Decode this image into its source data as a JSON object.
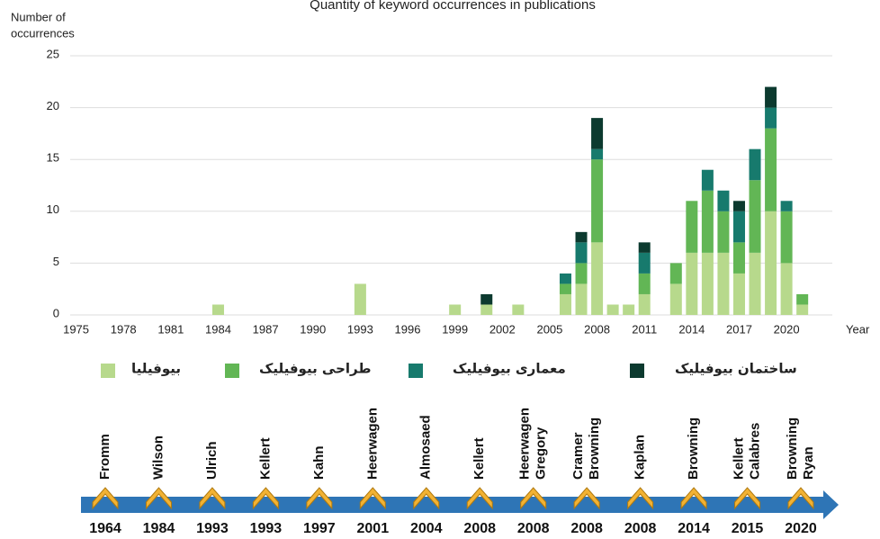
{
  "chart_data": {
    "type": "bar",
    "stacked": true,
    "title": "Quantity of keyword occurrences in publications",
    "y_label": [
      "Number of",
      "occurrences"
    ],
    "x_label": "Year",
    "x": [
      1984,
      1993,
      1999,
      2001,
      2003,
      2006,
      2007,
      2008,
      2009,
      2010,
      2011,
      2013,
      2014,
      2015,
      2016,
      2017,
      2018,
      2019,
      2020,
      2021
    ],
    "series": [
      {
        "name": "بیوفیلیا",
        "color": "#b7d98c",
        "values": [
          1,
          3,
          1,
          1,
          1,
          2,
          3,
          7,
          1,
          1,
          2,
          3,
          6,
          6,
          6,
          4,
          6,
          10,
          5,
          1
        ]
      },
      {
        "name": "طراحی بیوفیلیک",
        "color": "#62b655",
        "values": [
          0,
          0,
          0,
          0,
          0,
          1,
          2,
          8,
          0,
          0,
          2,
          2,
          5,
          6,
          4,
          3,
          7,
          8,
          5,
          1
        ]
      },
      {
        "name": "معماری بیوفیلیک",
        "color": "#177a6d",
        "values": [
          0,
          0,
          0,
          0,
          0,
          1,
          2,
          1,
          0,
          0,
          2,
          0,
          0,
          2,
          2,
          3,
          3,
          2,
          1,
          0
        ]
      },
      {
        "name": "ساختمان بیوفیلیک",
        "color": "#0c3a2f",
        "values": [
          0,
          0,
          0,
          1,
          0,
          0,
          1,
          3,
          0,
          0,
          1,
          0,
          0,
          0,
          0,
          1,
          0,
          2,
          0,
          0
        ]
      }
    ],
    "xlim": [
      1973.6,
      2022.9
    ],
    "xticks": [
      1975,
      1978,
      1981,
      1984,
      1987,
      1990,
      1993,
      1996,
      1999,
      2002,
      2005,
      2008,
      2011,
      2014,
      2017,
      2020
    ],
    "ylim": [
      0,
      25
    ],
    "yticks": [
      0,
      5,
      10,
      15,
      20,
      25
    ],
    "grid": true
  },
  "timeline": [
    {
      "names": [
        "Fromm"
      ],
      "year": "1964"
    },
    {
      "names": [
        "Wilson"
      ],
      "year": "1984"
    },
    {
      "names": [
        "Ulrich"
      ],
      "year": "1993"
    },
    {
      "names": [
        "Kellert"
      ],
      "year": "1993"
    },
    {
      "names": [
        "Kahn"
      ],
      "year": "1997"
    },
    {
      "names": [
        "Heerwagen"
      ],
      "year": "2001"
    },
    {
      "names": [
        "Almosaed"
      ],
      "year": "2004"
    },
    {
      "names": [
        "Kellert"
      ],
      "year": "2008"
    },
    {
      "names": [
        "Heerwagen",
        "Gregory"
      ],
      "year": "2008"
    },
    {
      "names": [
        "Cramer",
        "Browning"
      ],
      "year": "2008"
    },
    {
      "names": [
        "Kaplan"
      ],
      "year": "2008"
    },
    {
      "names": [
        "Browning"
      ],
      "year": "2014"
    },
    {
      "names": [
        "Kellert",
        "Calabres"
      ],
      "year": "2015"
    },
    {
      "names": [
        "Browning",
        "Ryan"
      ],
      "year": "2020"
    }
  ]
}
